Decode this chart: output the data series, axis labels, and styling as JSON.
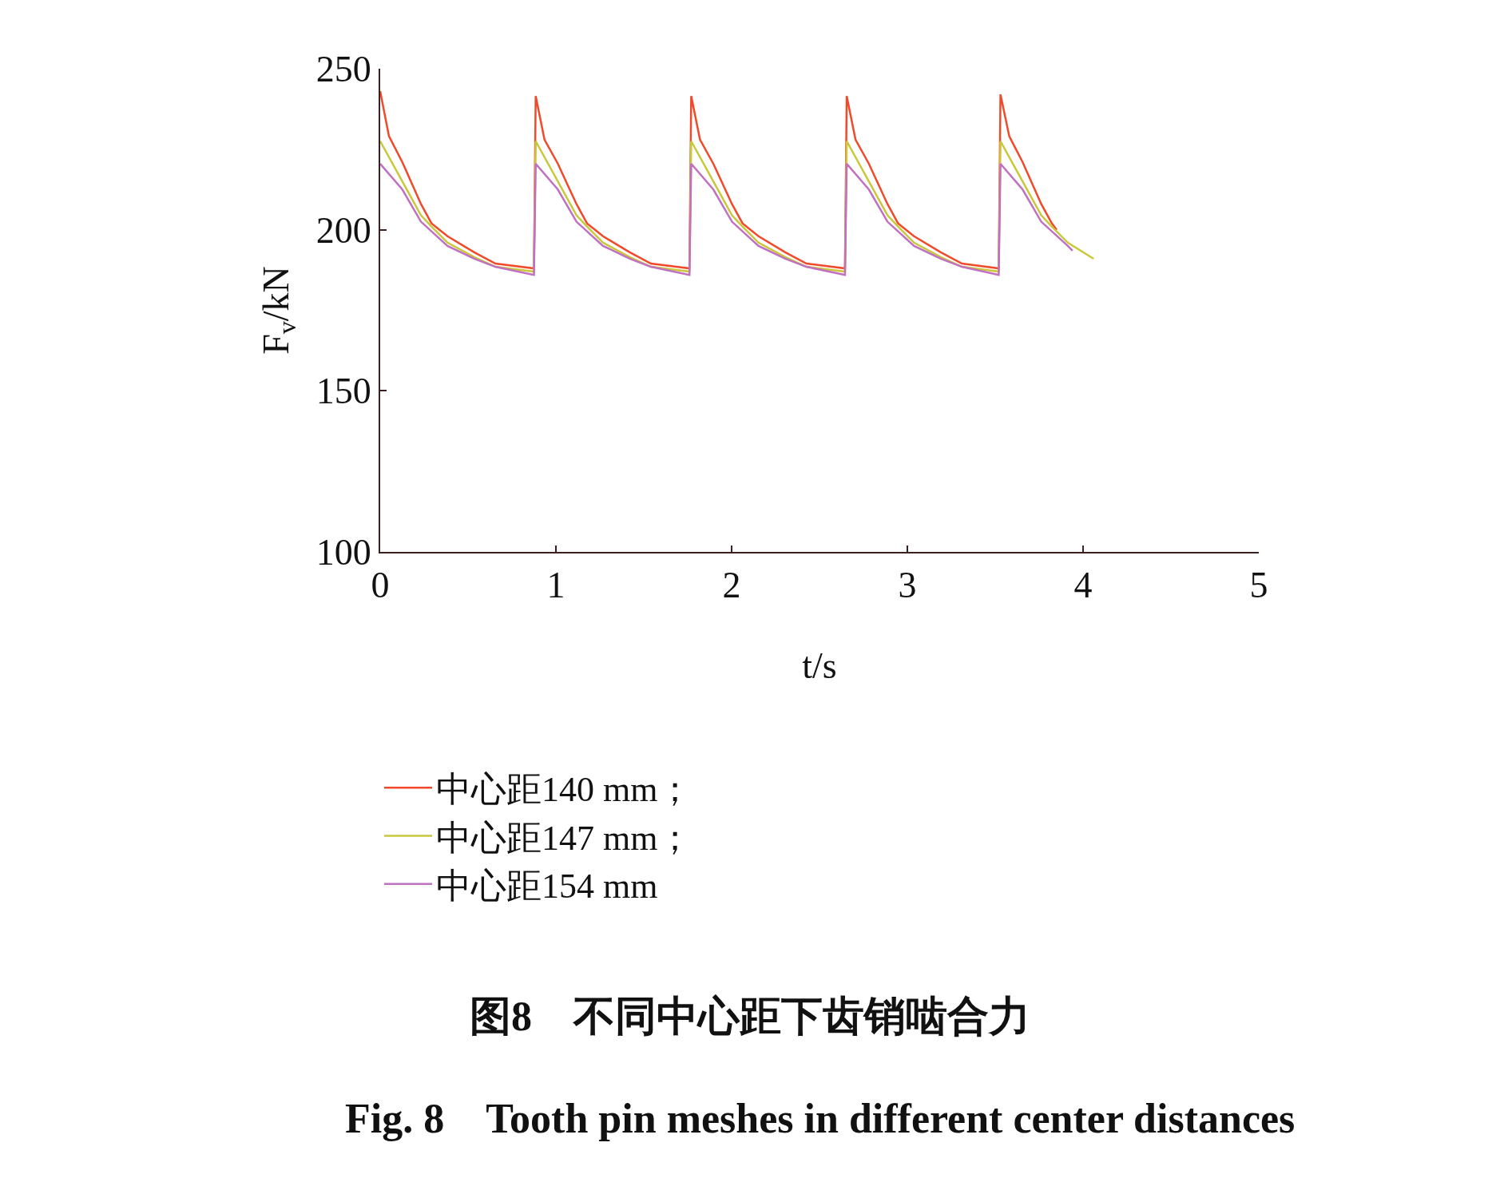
{
  "chart_data": {
    "type": "line",
    "title": "图8　不同中心距下齿销啮合力",
    "subtitle": "Fig. 8　Tooth pin meshes in different center distances",
    "xlabel": "t/s",
    "ylabel": "F$_{v}$/kN",
    "xlim": [
      0,
      5
    ],
    "xticks": [
      0,
      1,
      2,
      3,
      4,
      5
    ],
    "ylim": [
      100,
      250
    ],
    "yticks": [
      100,
      150,
      200,
      250
    ],
    "legend": "bottom",
    "marker": "none",
    "line_style": "solid",
    "series": [
      {
        "name": "中心距140 mm；",
        "color": "#f04a2a",
        "x": [
          0,
          0.05,
          0.126,
          0.232,
          0.292,
          0.383,
          0.535,
          0.656,
          0.875,
          0.885,
          0.935,
          1.011,
          1.117,
          1.177,
          1.268,
          1.42,
          1.541,
          1.76,
          1.77,
          1.82,
          1.896,
          2.002,
          2.062,
          2.153,
          2.305,
          2.426,
          2.645,
          2.655,
          2.705,
          2.781,
          2.887,
          2.947,
          3.038,
          3.19,
          3.311,
          3.52,
          3.53,
          3.58,
          3.656,
          3.762,
          3.822,
          3.85
        ],
        "values": [
          243,
          229,
          221,
          208,
          202,
          198,
          193,
          189.5,
          188,
          241.5,
          228,
          220.5,
          208,
          202,
          198,
          193,
          189.5,
          188,
          241.5,
          228,
          220.5,
          208,
          202,
          198,
          193,
          189.5,
          188,
          241.5,
          228,
          220.5,
          208,
          202,
          198,
          193,
          189.5,
          188,
          242,
          229,
          221,
          208,
          202,
          200
        ]
      },
      {
        "name": "中心距147 mm；",
        "color": "#c8c83a",
        "x": [
          0,
          0.126,
          0.232,
          0.292,
          0.383,
          0.535,
          0.656,
          0.875,
          0.885,
          1.011,
          1.117,
          1.177,
          1.268,
          1.42,
          1.541,
          1.76,
          1.77,
          1.896,
          2.002,
          2.062,
          2.153,
          2.305,
          2.426,
          2.645,
          2.655,
          2.781,
          2.887,
          2.947,
          3.038,
          3.19,
          3.311,
          3.52,
          3.53,
          3.656,
          3.762,
          3.822,
          3.913,
          4.06
        ],
        "values": [
          227.5,
          215,
          204.5,
          201,
          196,
          191.5,
          188.5,
          187,
          227.5,
          215,
          204.5,
          201,
          196,
          191.5,
          188.5,
          187,
          227.5,
          215,
          204.5,
          201,
          196,
          191.5,
          188.5,
          187,
          227.5,
          215,
          204.5,
          201,
          196,
          191.5,
          188.5,
          187,
          227.5,
          215,
          204.5,
          201,
          196,
          191
        ]
      },
      {
        "name": "中心距154 mm",
        "color": "#c070c0",
        "x": [
          0,
          0.126,
          0.232,
          0.383,
          0.535,
          0.656,
          0.875,
          0.885,
          1.011,
          1.117,
          1.268,
          1.42,
          1.541,
          1.76,
          1.77,
          1.896,
          2.002,
          2.153,
          2.305,
          2.426,
          2.645,
          2.655,
          2.781,
          2.887,
          3.038,
          3.19,
          3.311,
          3.52,
          3.53,
          3.656,
          3.762,
          3.913,
          3.94
        ],
        "values": [
          220.5,
          212.5,
          202.5,
          195,
          191,
          188.5,
          186,
          220.5,
          212.5,
          202.5,
          195,
          191,
          188.5,
          186,
          220.5,
          212.5,
          202.5,
          195,
          191,
          188.5,
          186,
          220.5,
          212.5,
          202.5,
          195,
          191,
          188.5,
          186,
          220.5,
          212.5,
          202.5,
          195,
          193.5
        ]
      }
    ]
  }
}
